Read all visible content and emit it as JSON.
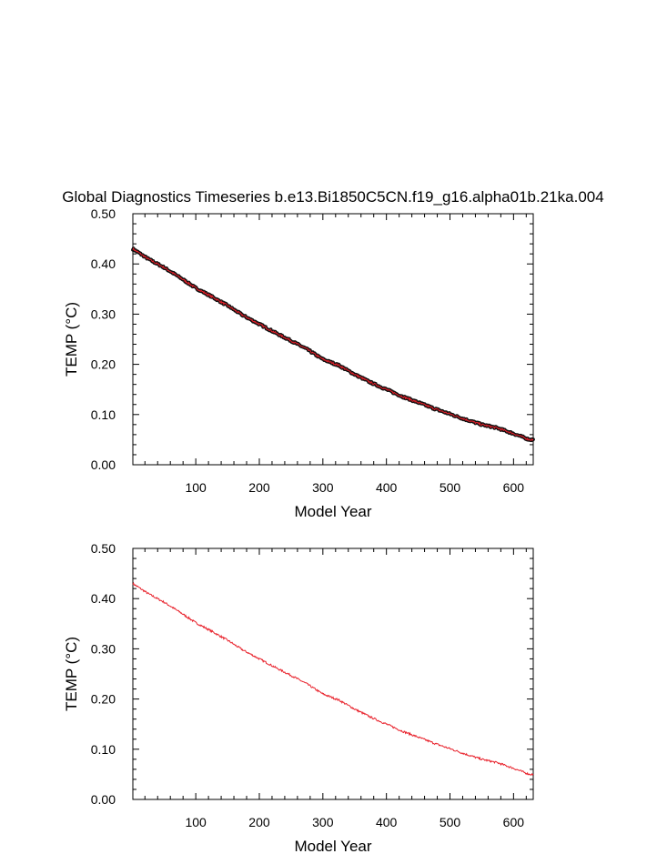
{
  "title": "Global Diagnostics Timeseries b.e13.Bi1850C5CN.f19_g16.alpha01b.21ka.004",
  "colors": {
    "trace": "#e8202a",
    "markers": "#111111",
    "axes": "#000000"
  },
  "chart_data": [
    {
      "type": "line",
      "title": "Global Diagnostics Timeseries b.e13.Bi1850C5CN.f19_g16.alpha01b.21ka.004",
      "xlabel": "Model Year",
      "ylabel": "TEMP (°C)",
      "xlim": [
        1,
        631
      ],
      "ylim": [
        0.0,
        0.5
      ],
      "xticks": [
        100,
        200,
        300,
        400,
        500,
        600
      ],
      "yticks": [
        "0.00",
        "0.10",
        "0.20",
        "0.30",
        "0.40",
        "0.50"
      ],
      "markers": true,
      "grid": false,
      "series": [
        {
          "x": [
            1,
            25,
            50,
            75,
            100,
            125,
            150,
            175,
            200,
            225,
            250,
            275,
            300,
            325,
            350,
            375,
            400,
            425,
            450,
            475,
            500,
            525,
            550,
            575,
            600,
            625
          ],
          "values": [
            0.43,
            0.41,
            0.393,
            0.373,
            0.352,
            0.335,
            0.317,
            0.297,
            0.28,
            0.263,
            0.247,
            0.23,
            0.21,
            0.198,
            0.18,
            0.164,
            0.15,
            0.136,
            0.124,
            0.112,
            0.101,
            0.09,
            0.08,
            0.073,
            0.062,
            0.05
          ]
        }
      ]
    },
    {
      "type": "line",
      "title": "",
      "xlabel": "Model Year",
      "ylabel": "TEMP (°C)",
      "xlim": [
        1,
        631
      ],
      "ylim": [
        0.0,
        0.5
      ],
      "xticks": [
        100,
        200,
        300,
        400,
        500,
        600
      ],
      "yticks": [
        "0.00",
        "0.10",
        "0.20",
        "0.30",
        "0.40",
        "0.50"
      ],
      "markers": false,
      "grid": false,
      "series": [
        {
          "x": [
            1,
            25,
            50,
            75,
            100,
            125,
            150,
            175,
            200,
            225,
            250,
            275,
            300,
            325,
            350,
            375,
            400,
            425,
            450,
            475,
            500,
            525,
            550,
            575,
            600,
            625
          ],
          "values": [
            0.43,
            0.41,
            0.393,
            0.373,
            0.352,
            0.335,
            0.317,
            0.297,
            0.28,
            0.263,
            0.247,
            0.23,
            0.21,
            0.198,
            0.18,
            0.164,
            0.15,
            0.136,
            0.124,
            0.112,
            0.101,
            0.09,
            0.08,
            0.073,
            0.062,
            0.05
          ]
        }
      ]
    }
  ]
}
